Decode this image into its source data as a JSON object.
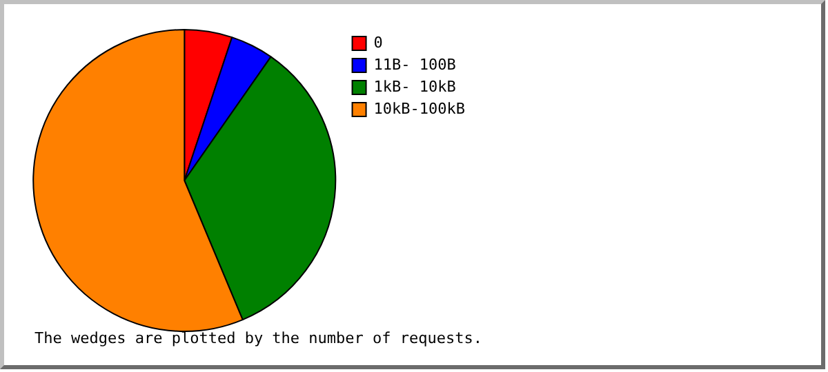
{
  "chart_data": {
    "type": "pie",
    "categories": [
      "0",
      "11B- 100B",
      "1kB- 10kB",
      "10kB-100kB"
    ],
    "values": [
      5.1,
      4.6,
      34.0,
      56.3
    ],
    "colors": [
      "#ff0000",
      "#0000ff",
      "#008000",
      "#ff8000"
    ],
    "legend": "right",
    "annotations": [
      "The wedges are plotted by the number of requests."
    ]
  }
}
